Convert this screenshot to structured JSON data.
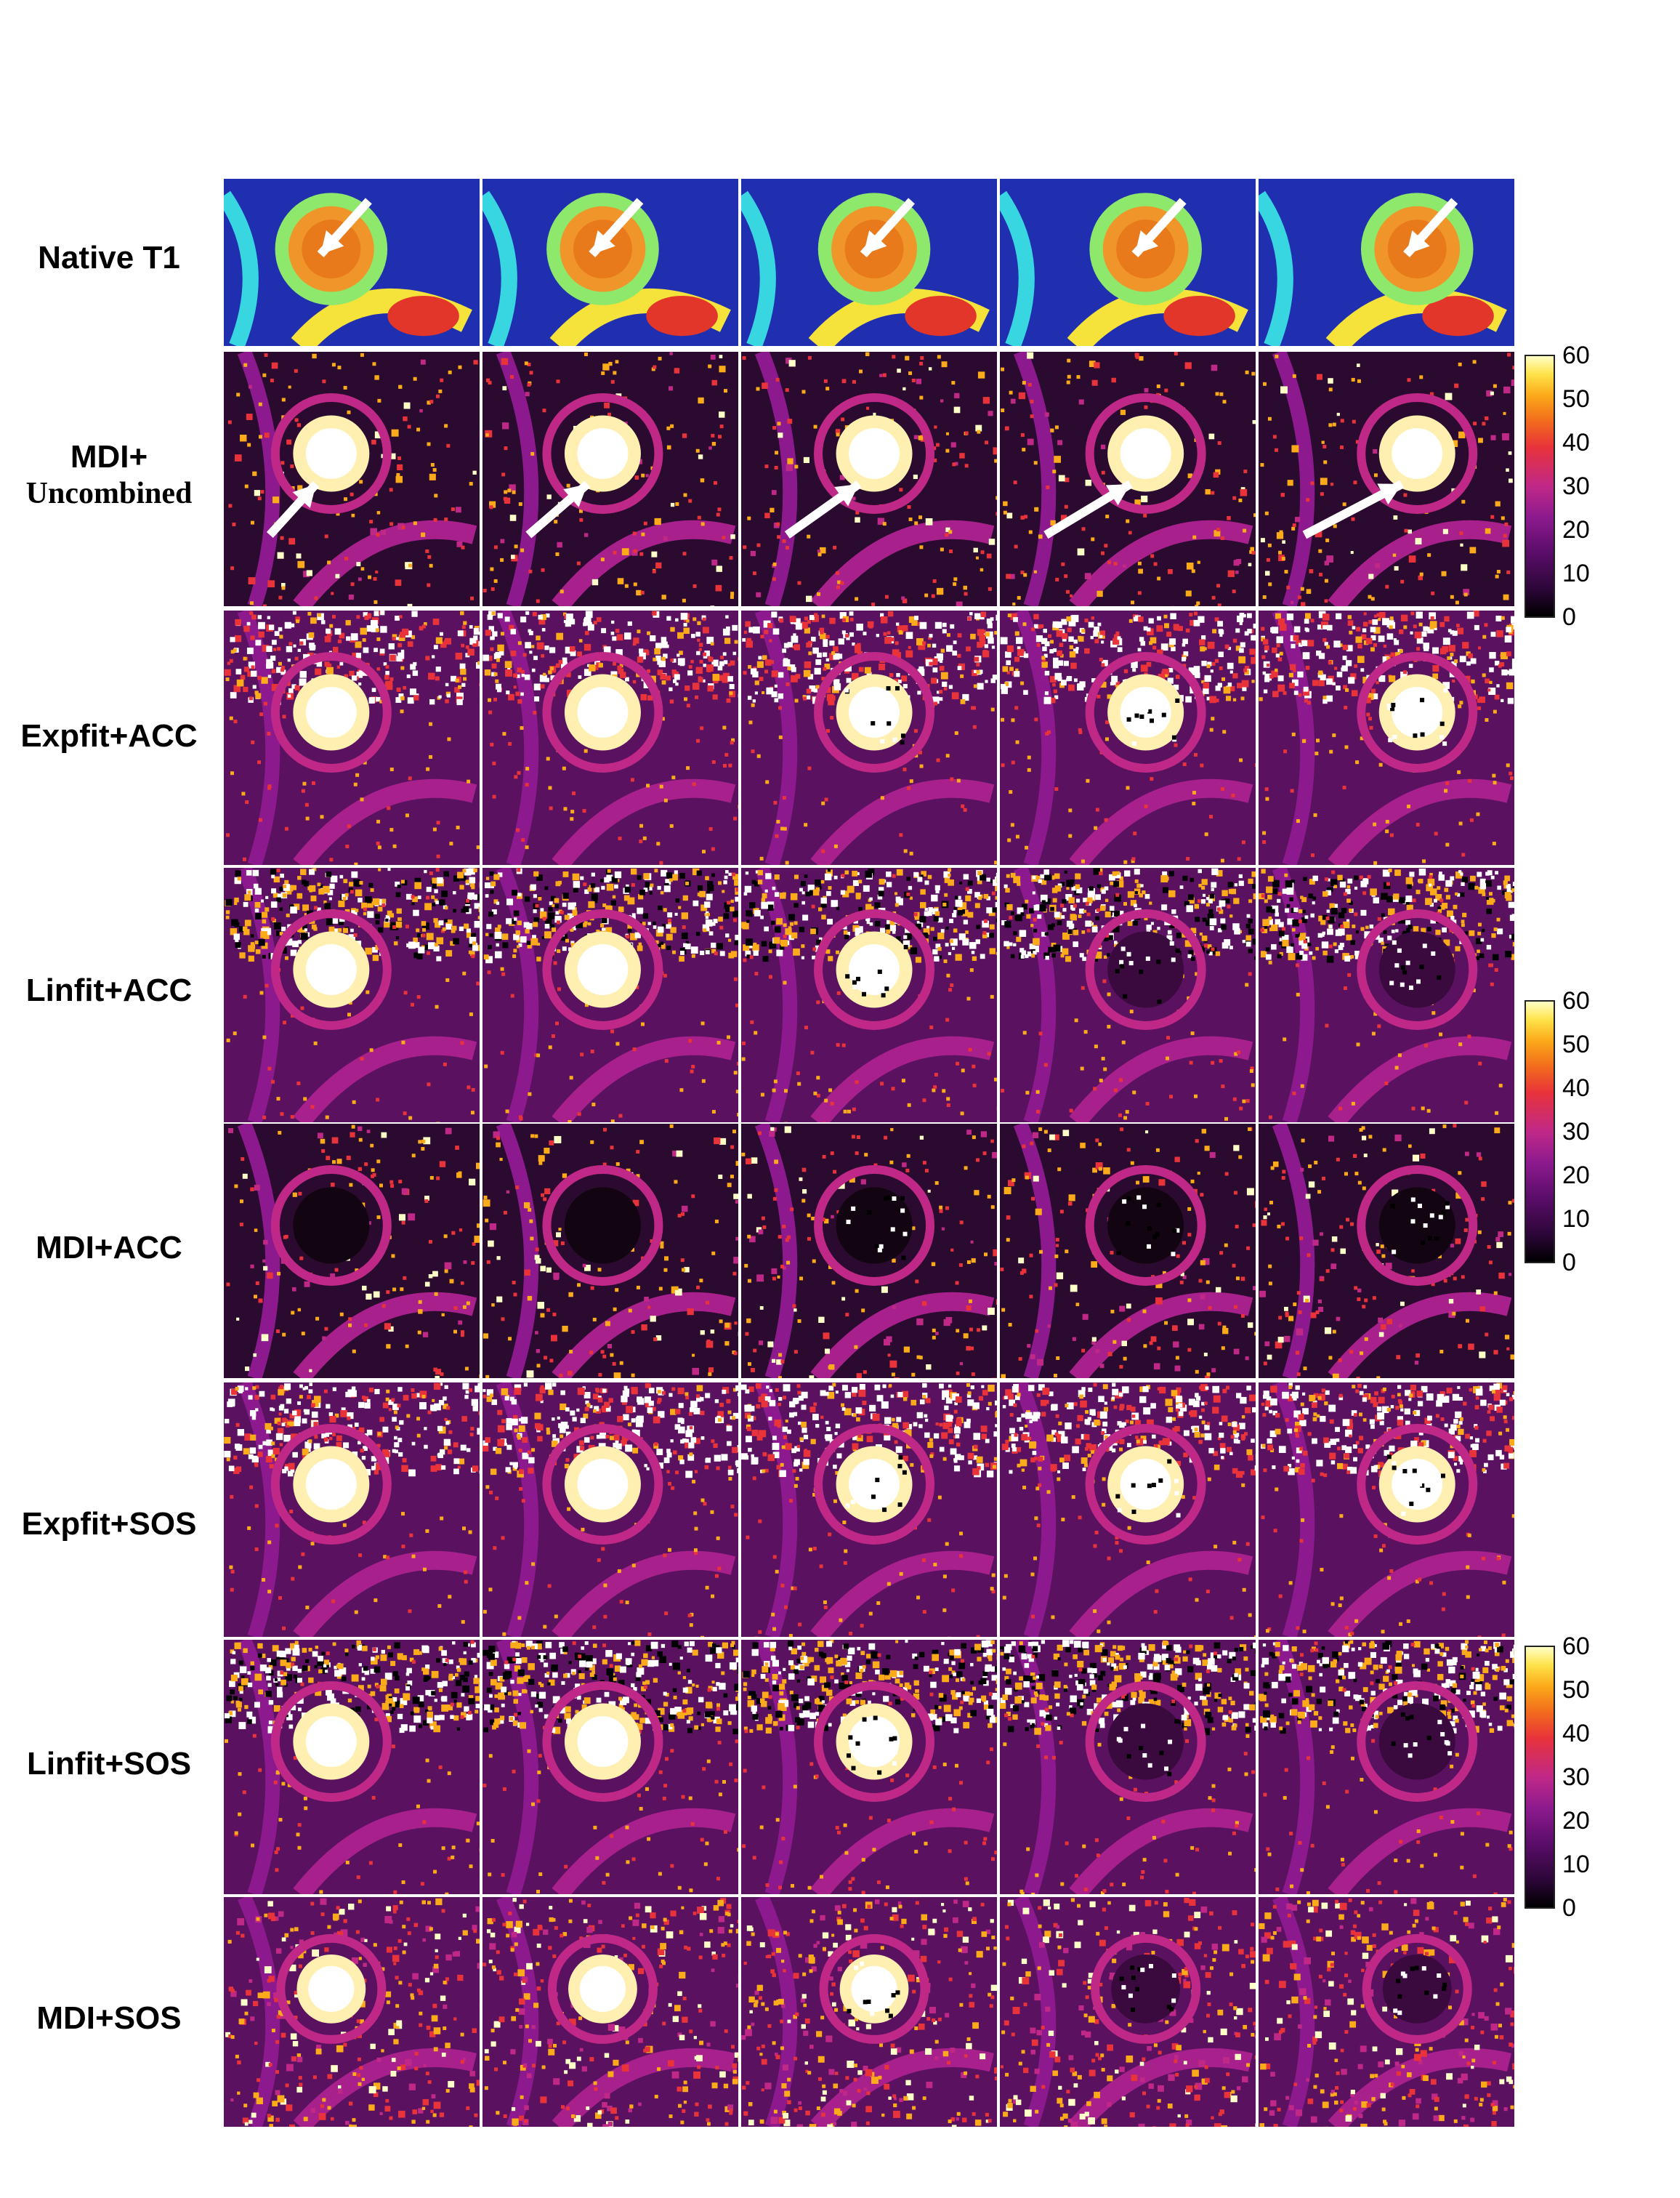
{
  "row_labels": [
    {
      "line1": "Native T1",
      "line2": ""
    },
    {
      "line1": "MDI+",
      "line2": "Uncombined"
    },
    {
      "line1": "Expfit+ACC",
      "line2": ""
    },
    {
      "line1": "Linfit+ACC",
      "line2": ""
    },
    {
      "line1": "MDI+ACC",
      "line2": ""
    },
    {
      "line1": "Expfit+SOS",
      "line2": ""
    },
    {
      "line1": "Linfit+SOS",
      "line2": ""
    },
    {
      "line1": "MDI+SOS",
      "line2": ""
    }
  ],
  "colorbar": {
    "ticks": [
      "60",
      "50",
      "40",
      "30",
      "20",
      "10",
      "0"
    ]
  },
  "colors": {
    "native_background": "#1f2fb0",
    "colormap": [
      "#000000",
      "#5c0d6b",
      "#c02888",
      "#e8333b",
      "#fbaa1a",
      "#ffffc8"
    ],
    "arrow": "#ffffff"
  },
  "columns": 5,
  "arrow_rows": [
    "Native T1",
    "MDI+ Uncombined"
  ]
}
